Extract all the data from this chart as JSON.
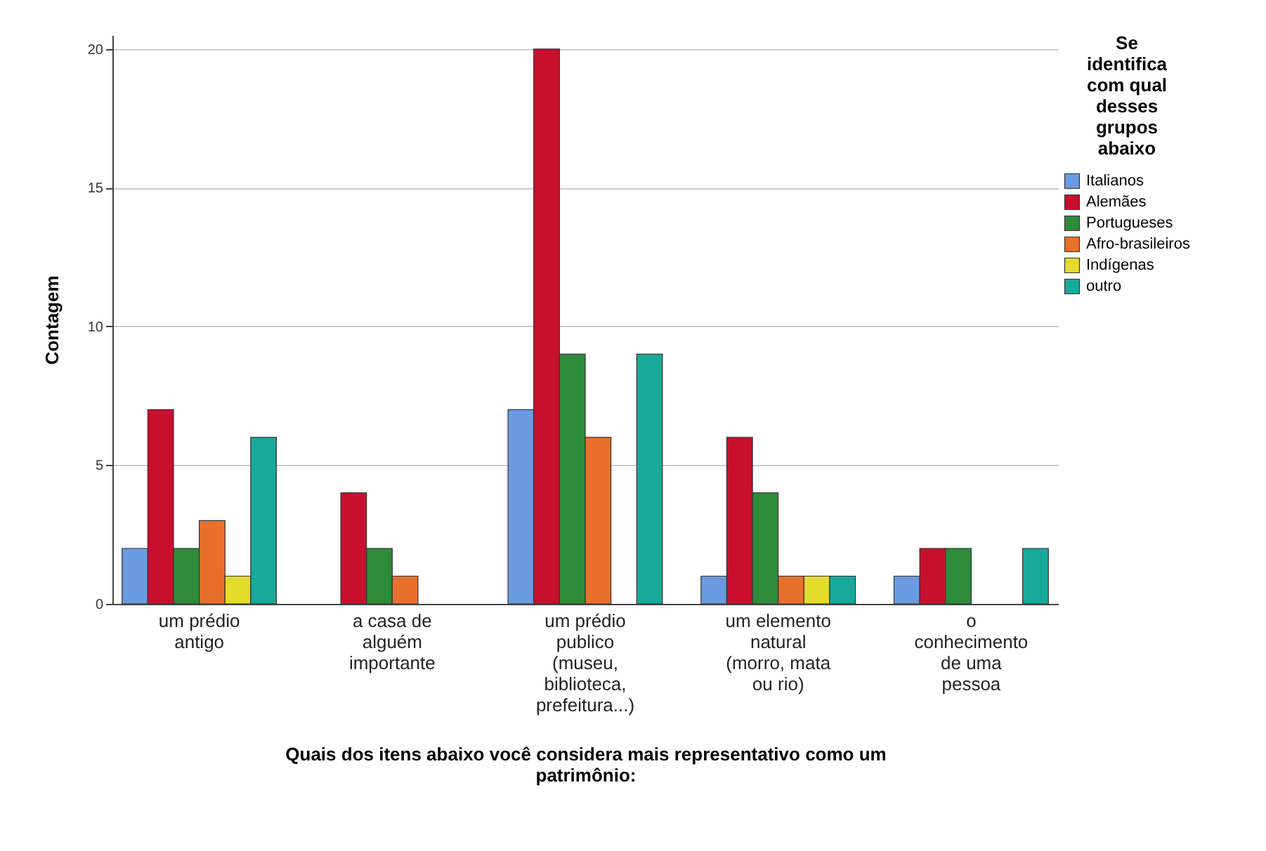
{
  "chart_data": {
    "type": "bar",
    "xlabel": "Quais dos itens abaixo você considera mais representativo como um patrimônio:",
    "ylabel": "Contagem",
    "legend_title": "Se identifica com qual desses grupos abaixo",
    "categories": [
      "um prédio antigo",
      "a casa de alguém importante",
      "um prédio publico (museu, biblioteca, prefeitura...)",
      "um elemento natural (morro, mata ou rio)",
      "o conhecimento de uma pessoa"
    ],
    "series": [
      {
        "name": "Italianos",
        "color": "#6a9be0",
        "values": [
          2,
          null,
          7,
          1,
          1
        ]
      },
      {
        "name": "Alemães",
        "color": "#c8102e",
        "values": [
          7,
          4,
          20,
          6,
          2
        ]
      },
      {
        "name": "Portugueses",
        "color": "#2e8b3a",
        "values": [
          2,
          2,
          9,
          4,
          2
        ]
      },
      {
        "name": "Afro-brasileiros",
        "color": "#e8702a",
        "values": [
          3,
          1,
          6,
          1,
          null
        ]
      },
      {
        "name": "Indígenas",
        "color": "#e3dc2a",
        "values": [
          1,
          null,
          null,
          1,
          null
        ]
      },
      {
        "name": "outro",
        "color": "#17a99a",
        "values": [
          6,
          null,
          9,
          1,
          2
        ]
      }
    ],
    "ylim": [
      0,
      20.5
    ],
    "yticks": [
      0,
      5,
      10,
      15,
      20
    ],
    "grid": "y",
    "legend": "top right"
  }
}
